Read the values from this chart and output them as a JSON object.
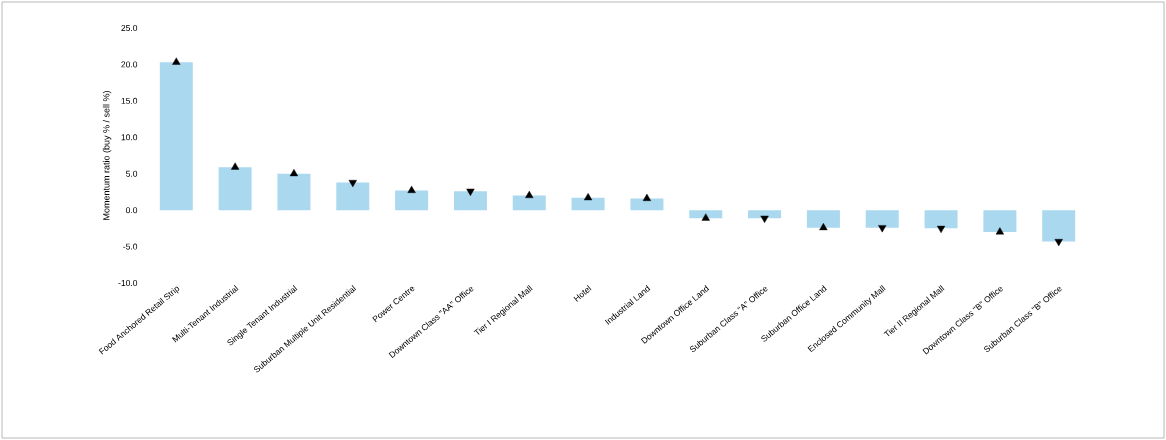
{
  "chart_data": {
    "type": "bar",
    "ylabel": "Momentum ratio (buy % / sell %)",
    "categories": [
      "Food Anchored Retail Strip",
      "Multi-Tenant Industrial",
      "Single Tenant Industrial",
      "Suburban Multiple Unit Residential",
      "Power Centre",
      "Downtown Class \"AA\" Office",
      "Tier I Regional Mall",
      "Hotel",
      "Industrial Land",
      "Downtown Office Land",
      "Suburban Class \"A\" Office",
      "Suburban Office Land",
      "Enclosed Community Mall",
      "Tier II Regional Mall",
      "Downtown Class \"B\" Office",
      "Suburban Class \"B\" Office"
    ],
    "series": [
      {
        "color": "#aad8ef",
        "values": [
          20.3,
          5.9,
          5.0,
          3.8,
          2.7,
          2.6,
          2.0,
          1.7,
          1.6,
          -1.1,
          -1.1,
          -2.4,
          -2.4,
          -2.5,
          -3.0,
          -4.3
        ]
      },
      {
        "type": "scatter",
        "color": "#000000",
        "marker": "triangle",
        "values": [
          20.3,
          5.9,
          5.0,
          null,
          2.7,
          null,
          2.0,
          1.7,
          1.6,
          -1.1,
          null,
          -2.4,
          null,
          null,
          -3.0,
          null
        ]
      },
      {
        "type": "scatter",
        "color": "#000000",
        "marker": "triangle_down",
        "values": [
          null,
          null,
          null,
          3.8,
          null,
          2.6,
          null,
          null,
          null,
          null,
          -1.1,
          null,
          -2.4,
          -2.5,
          null,
          -4.3
        ]
      }
    ],
    "ylim": [
      -10,
      25
    ],
    "yticks": [
      {
        "value": -10,
        "label": "-10.0"
      },
      {
        "value": -5,
        "label": "-5.0"
      },
      {
        "value": 0,
        "label": "0.0"
      },
      {
        "value": 5,
        "label": "5.0"
      },
      {
        "value": 10,
        "label": "10.0"
      },
      {
        "value": 15,
        "label": "15.0"
      },
      {
        "value": 20,
        "label": "20.0"
      },
      {
        "value": 25,
        "label": "25.0"
      }
    ]
  }
}
